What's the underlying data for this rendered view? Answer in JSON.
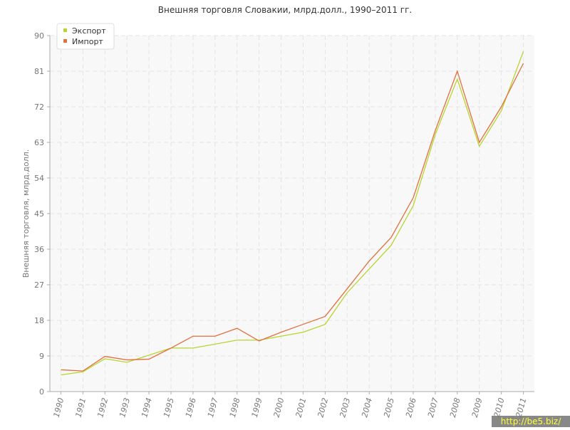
{
  "chart_data": {
    "type": "line",
    "title": "Внешняя торговля Словакии, млрд.долл., 1990–2011 гг.",
    "y_label": "Внешняя торговля, млрд.долл.",
    "categories": [
      "1990",
      "1991",
      "1992",
      "1993",
      "1994",
      "1995",
      "1996",
      "1997",
      "1998",
      "1999",
      "2000",
      "2001",
      "2002",
      "2003",
      "2004",
      "2005",
      "2006",
      "2007",
      "2008",
      "2009",
      "2010",
      "2011"
    ],
    "series": [
      {
        "name": "Экспорт",
        "color": "#b8d430",
        "values": [
          4.2,
          5.0,
          8.3,
          7.4,
          9.2,
          11,
          11,
          12,
          13,
          13,
          14,
          15,
          17,
          25,
          31,
          37,
          47,
          65,
          79,
          62,
          71,
          86
        ]
      },
      {
        "name": "Импорт",
        "color": "#e0703f",
        "values": [
          5.5,
          5.2,
          8.9,
          8.0,
          8.2,
          11,
          14,
          14,
          16,
          12.8,
          15,
          17,
          19,
          26,
          33,
          39,
          49,
          66,
          81,
          63,
          72,
          83
        ]
      }
    ],
    "ylim": [
      0,
      90
    ],
    "yticks": [
      0,
      9,
      18,
      27,
      36,
      45,
      54,
      63,
      72,
      81,
      90
    ],
    "grid": true,
    "legend": "top-left",
    "watermark": "http://be5.biz/"
  }
}
